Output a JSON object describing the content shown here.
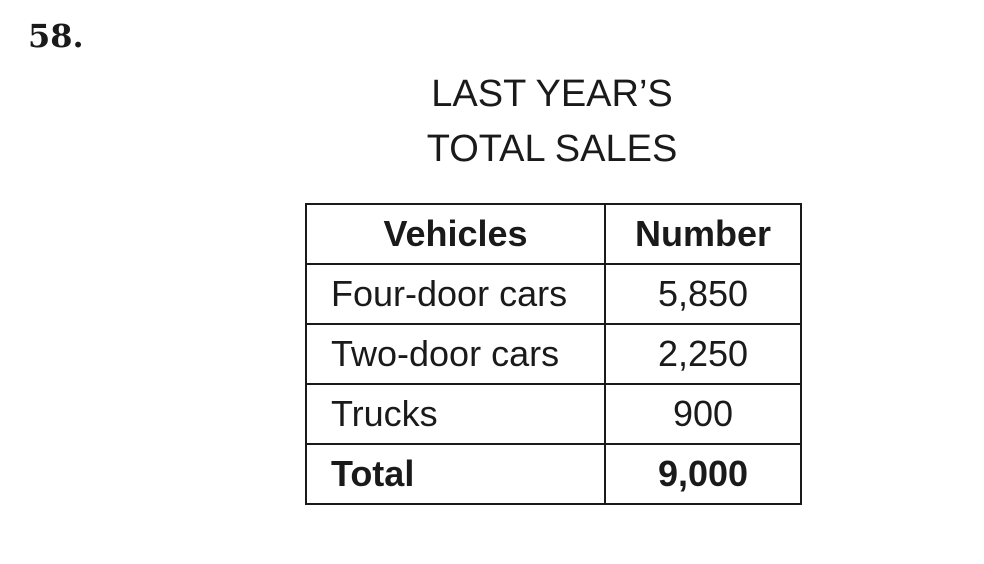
{
  "question": {
    "number": "58."
  },
  "title": {
    "line1": "LAST YEAR’S",
    "line2": "TOTAL SALES"
  },
  "table": {
    "headers": [
      "Vehicles",
      "Number"
    ],
    "rows": [
      [
        "Four-door cars",
        "5,850"
      ],
      [
        "Two-door cars",
        "2,250"
      ],
      [
        "Trucks",
        "900"
      ]
    ],
    "total": [
      "Total",
      "9,000"
    ]
  }
}
